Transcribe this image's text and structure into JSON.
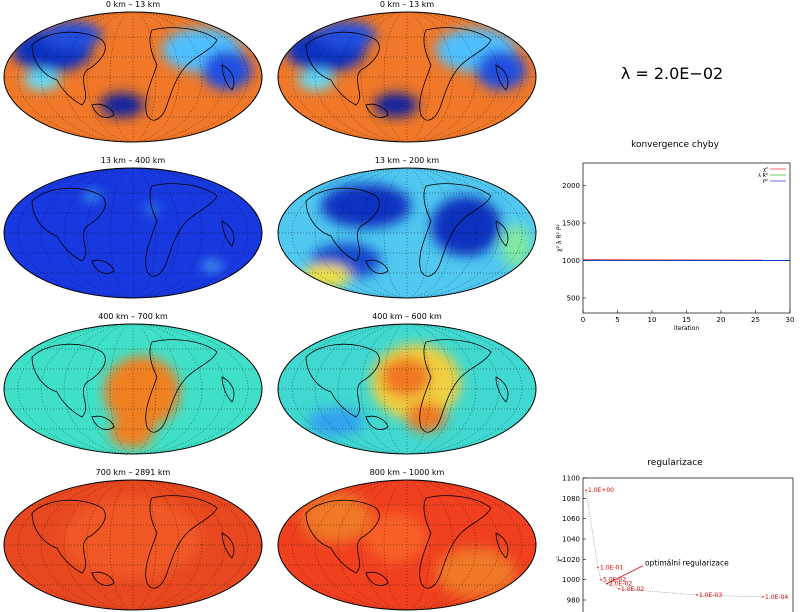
{
  "maps": [
    {
      "title": "0 km – 13 km",
      "style": "crust"
    },
    {
      "title": "0 km – 13 km",
      "style": "crust"
    },
    {
      "title": "13 km – 400 km",
      "style": "blue"
    },
    {
      "title": "13 km – 200 km",
      "style": "blue-smooth"
    },
    {
      "title": "400 km – 700 km",
      "style": "cyan-orange"
    },
    {
      "title": "400 km – 600 km",
      "style": "cyan-yellow"
    },
    {
      "title": "700 km – 2891 km",
      "style": "red"
    },
    {
      "title": "800 km – 1000 km",
      "style": "red-smooth"
    }
  ],
  "lambda_text": "λ = 2.0E−02",
  "convergence": {
    "title": "konvergence chyby",
    "chart_data": {
      "type": "line",
      "title": "konvergence chyby",
      "xlabel": "iteration",
      "ylabel": "χ² λ R² P²",
      "xlim": [
        0,
        30
      ],
      "ylim": [
        300,
        2300
      ],
      "xticks": [
        0,
        5,
        10,
        15,
        20,
        25,
        30
      ],
      "yticks": [
        500,
        1000,
        1500,
        2000
      ],
      "series": [
        {
          "name": "χ²",
          "color": "#ff0000",
          "x": [
            0,
            30
          ],
          "y": [
            1010,
            1005
          ]
        },
        {
          "name": "λ R²",
          "color": "#00b000",
          "x": [
            0,
            30
          ],
          "y": [
            1000,
            1000
          ]
        },
        {
          "name": "P²",
          "color": "#0000ff",
          "x": [
            0,
            30
          ],
          "y": [
            1003,
            1002
          ]
        }
      ]
    }
  },
  "regularization": {
    "title": "regularizace",
    "annotation": "optimální regularizace",
    "chart_data": {
      "type": "line",
      "title": "regularizace",
      "ylabel": "χ²",
      "ylim": [
        980,
        1100
      ],
      "yticks": [
        980,
        1000,
        1020,
        1040,
        1060,
        1080,
        1100
      ],
      "points": [
        {
          "label": "1.0E+00",
          "x": 1,
          "y": 1088
        },
        {
          "label": "1.0E-01",
          "x": 5,
          "y": 1012
        },
        {
          "label": "5.0E-02",
          "x": 6,
          "y": 1000
        },
        {
          "label": "2.0E-02",
          "x": 8,
          "y": 996
        },
        {
          "label": "1.0E-02",
          "x": 12,
          "y": 991
        },
        {
          "label": "1.0E-03",
          "x": 38,
          "y": 985
        },
        {
          "label": "1.0E-04",
          "x": 60,
          "y": 983
        }
      ]
    }
  }
}
